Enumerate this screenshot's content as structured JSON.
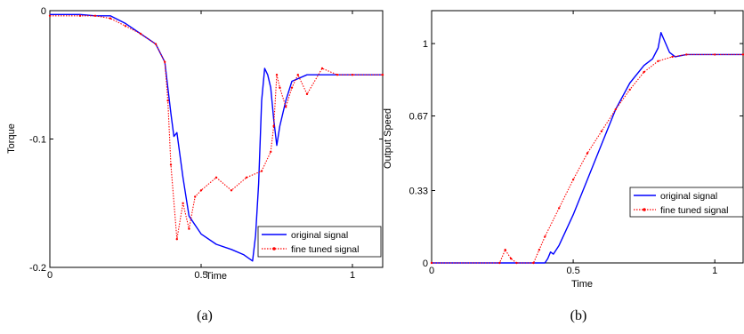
{
  "chart_data": [
    {
      "type": "line",
      "caption": "(a)",
      "title": "",
      "xlabel": "Time",
      "ylabel": "Torque",
      "xlim": [
        0,
        1.1
      ],
      "ylim": [
        -0.2,
        0
      ],
      "xticks": [
        0,
        0.5,
        1
      ],
      "xtick_labels": [
        "0",
        "0.5",
        "1"
      ],
      "yticks": [
        0,
        -0.1,
        -0.2
      ],
      "ytick_labels": [
        "0",
        "-0.1",
        "-0.2"
      ],
      "grid": false,
      "legend_position": "bottom-right",
      "series": [
        {
          "name": "original signal",
          "color": "#0000ff",
          "style": "solid",
          "x": [
            0,
            0.1,
            0.15,
            0.2,
            0.25,
            0.3,
            0.35,
            0.38,
            0.4,
            0.41,
            0.42,
            0.44,
            0.46,
            0.5,
            0.55,
            0.6,
            0.64,
            0.67,
            0.68,
            0.69,
            0.7,
            0.71,
            0.72,
            0.73,
            0.74,
            0.75,
            0.76,
            0.78,
            0.8,
            0.85,
            0.9,
            1.0,
            1.1
          ],
          "y": [
            -0.003,
            -0.003,
            -0.004,
            -0.004,
            -0.01,
            -0.018,
            -0.026,
            -0.04,
            -0.08,
            -0.098,
            -0.095,
            -0.13,
            -0.16,
            -0.174,
            -0.182,
            -0.186,
            -0.19,
            -0.195,
            -0.175,
            -0.135,
            -0.07,
            -0.045,
            -0.05,
            -0.06,
            -0.085,
            -0.105,
            -0.09,
            -0.07,
            -0.055,
            -0.05,
            -0.05,
            -0.05,
            -0.05
          ]
        },
        {
          "name": "fine tuned signal",
          "color": "#ff0000",
          "style": "dotted",
          "marker": "dot",
          "x": [
            0,
            0.1,
            0.15,
            0.2,
            0.25,
            0.3,
            0.35,
            0.38,
            0.39,
            0.4,
            0.42,
            0.44,
            0.46,
            0.48,
            0.5,
            0.55,
            0.6,
            0.65,
            0.7,
            0.73,
            0.74,
            0.75,
            0.76,
            0.78,
            0.8,
            0.82,
            0.85,
            0.9,
            0.95,
            1.0,
            1.1
          ],
          "y": [
            -0.004,
            -0.004,
            -0.004,
            -0.006,
            -0.012,
            -0.018,
            -0.026,
            -0.04,
            -0.07,
            -0.12,
            -0.178,
            -0.15,
            -0.17,
            -0.145,
            -0.14,
            -0.13,
            -0.14,
            -0.13,
            -0.125,
            -0.11,
            -0.09,
            -0.05,
            -0.06,
            -0.075,
            -0.06,
            -0.05,
            -0.065,
            -0.045,
            -0.05,
            -0.05,
            -0.05
          ]
        }
      ]
    },
    {
      "type": "line",
      "caption": "(b)",
      "title": "",
      "xlabel": "Time",
      "ylabel": "Output Speed",
      "xlim": [
        0,
        1.1
      ],
      "ylim": [
        0,
        1.15
      ],
      "xticks": [
        0,
        0.5,
        1
      ],
      "xtick_labels": [
        "0",
        "0.5",
        "1"
      ],
      "yticks": [
        0,
        0.33,
        0.67,
        1
      ],
      "ytick_labels": [
        "0",
        "0.33",
        "0.67",
        "1"
      ],
      "grid": false,
      "legend_position": "right",
      "series": [
        {
          "name": "original signal",
          "color": "#0000ff",
          "style": "solid",
          "x": [
            0,
            0.4,
            0.41,
            0.42,
            0.43,
            0.45,
            0.5,
            0.55,
            0.6,
            0.65,
            0.7,
            0.75,
            0.78,
            0.8,
            0.81,
            0.82,
            0.84,
            0.86,
            0.9,
            1.0,
            1.1
          ],
          "y": [
            0,
            0,
            0.02,
            0.05,
            0.04,
            0.08,
            0.22,
            0.38,
            0.54,
            0.7,
            0.82,
            0.9,
            0.93,
            0.98,
            1.05,
            1.02,
            0.96,
            0.94,
            0.95,
            0.95,
            0.95
          ]
        },
        {
          "name": "fine tuned signal",
          "color": "#ff0000",
          "style": "dotted",
          "marker": "dot",
          "x": [
            0,
            0.24,
            0.26,
            0.28,
            0.3,
            0.36,
            0.38,
            0.4,
            0.45,
            0.5,
            0.55,
            0.6,
            0.65,
            0.7,
            0.75,
            0.8,
            0.85,
            0.9,
            1.0,
            1.1
          ],
          "y": [
            0,
            0,
            0.06,
            0.02,
            0,
            0,
            0.06,
            0.12,
            0.25,
            0.38,
            0.5,
            0.6,
            0.7,
            0.79,
            0.87,
            0.92,
            0.94,
            0.95,
            0.95,
            0.95
          ]
        }
      ]
    }
  ]
}
